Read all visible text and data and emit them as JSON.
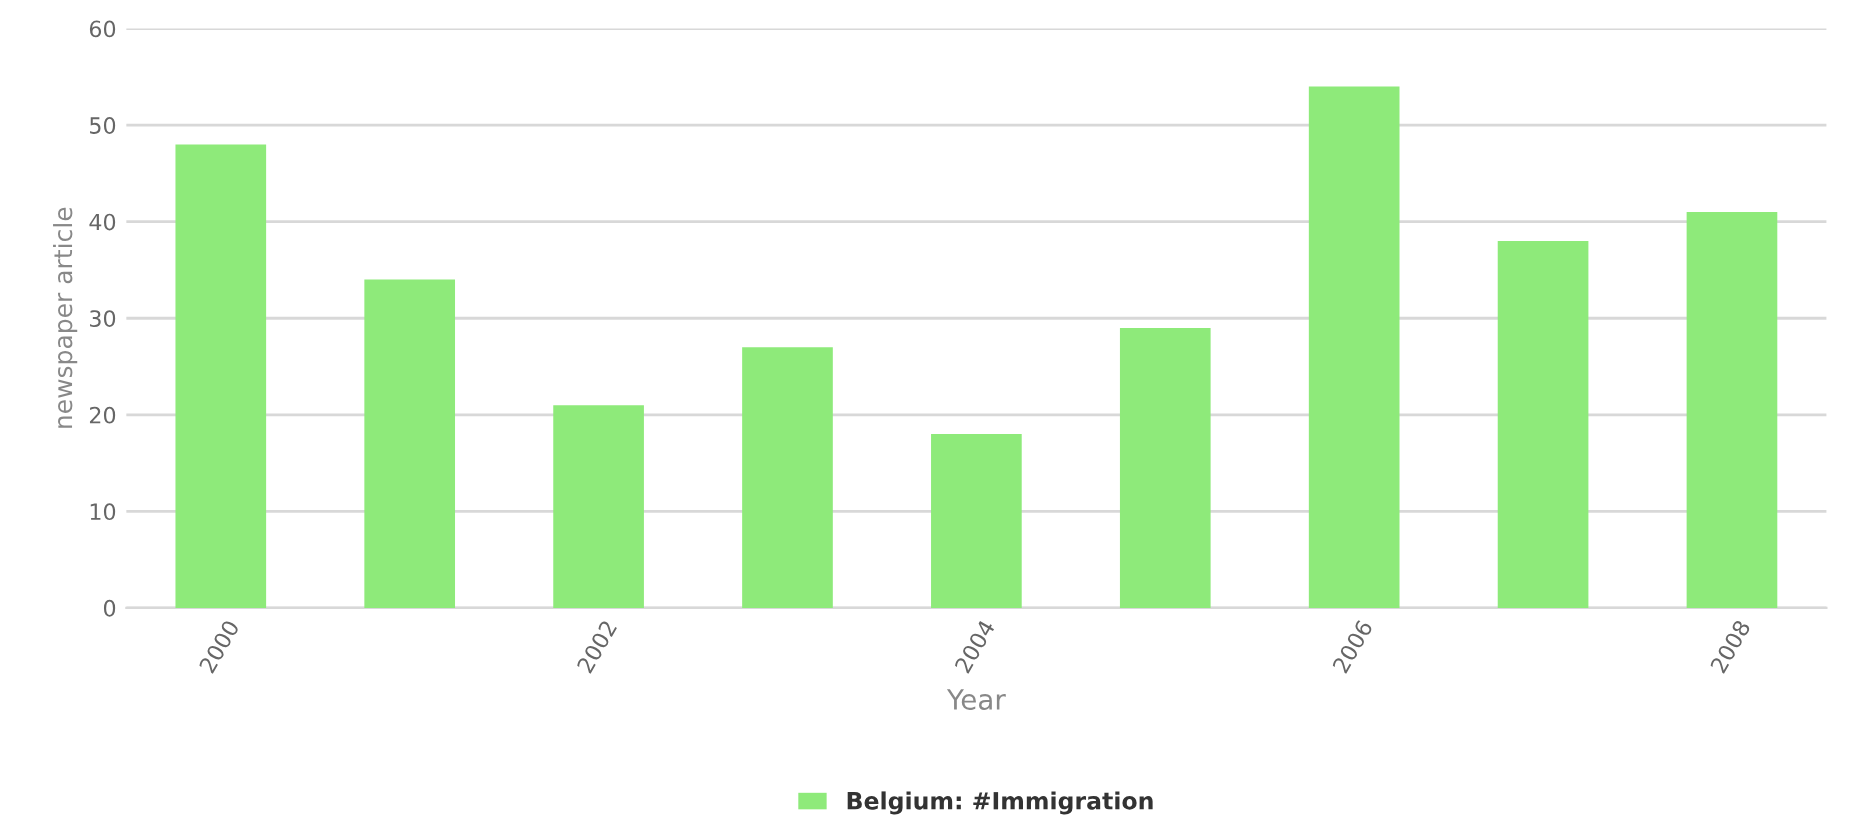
{
  "chart_data": {
    "type": "bar",
    "xlabel": "Year",
    "ylabel": "newspaper article",
    "categories": [
      "2000",
      null,
      "2002",
      null,
      "2004",
      null,
      "2006",
      null,
      "2008"
    ],
    "series": [
      {
        "name": "Belgium: #Immigration",
        "color": "#8eea7a",
        "values": [
          48,
          34,
          21,
          27,
          18,
          29,
          54,
          38,
          41
        ]
      }
    ],
    "ylim": [
      0,
      60
    ],
    "yticks": [
      0,
      10,
      20,
      30,
      40,
      50,
      60
    ],
    "grid": "y",
    "legend": "bottom"
  }
}
